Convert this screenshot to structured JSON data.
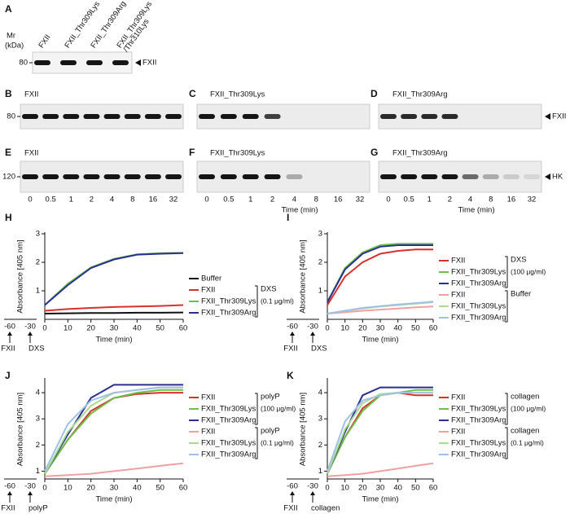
{
  "blots": [
    {
      "letter": "A",
      "mw_label": "Mr",
      "mw_unit": "(kDa)",
      "lanes": [
        [
          "FXII"
        ],
        [
          "FXII_Thr309Lys"
        ],
        [
          "FXII_Thr309Arg"
        ],
        [
          "FXII_Thr309Lys",
          "/Thr310Lys"
        ]
      ],
      "marker": "80",
      "band_label": "FXII"
    },
    {
      "letter": "B",
      "title": "FXII",
      "marker": "80"
    },
    {
      "letter": "C",
      "title": "FXII_Thr309Lys"
    },
    {
      "letter": "D",
      "title": "FXII_Thr309Arg",
      "band_label": "FXII"
    },
    {
      "letter": "E",
      "title": "FXII",
      "marker": "120"
    },
    {
      "letter": "F",
      "title": "FXII_Thr309Lys"
    },
    {
      "letter": "G",
      "title": "FXII_Thr309Arg",
      "band_label": "HK"
    }
  ],
  "time_points": [
    "0",
    "0.5",
    "1",
    "2",
    "4",
    "8",
    "16",
    "32"
  ],
  "time_label": "Time (min)",
  "chart_data": [
    {
      "type": "line",
      "letter": "H",
      "ylabel": "Absorbance [405 nm]",
      "xlabel": "Time (min)",
      "x": [
        0,
        10,
        20,
        30,
        40,
        50,
        60
      ],
      "xlim": [
        0,
        60
      ],
      "xticks": [
        0,
        10,
        20,
        30,
        40,
        50,
        60
      ],
      "ylim": [
        0,
        3
      ],
      "yticks": [
        1,
        2,
        3
      ],
      "series": [
        {
          "name": "Buffer",
          "color": "#111111",
          "values": [
            0.2,
            0.21,
            0.22,
            0.22,
            0.23,
            0.23,
            0.24
          ]
        },
        {
          "name": "FXII",
          "color": "#d9302c",
          "values": [
            0.3,
            0.36,
            0.4,
            0.43,
            0.45,
            0.47,
            0.5
          ]
        },
        {
          "name": "FXII_Thr309Lys",
          "color": "#6cc04a",
          "values": [
            0.5,
            1.25,
            1.82,
            2.12,
            2.28,
            2.32,
            2.33
          ]
        },
        {
          "name": "FXII_Thr309Arg",
          "color": "#2b2f8f",
          "values": [
            0.5,
            1.2,
            1.8,
            2.1,
            2.27,
            2.3,
            2.32
          ]
        }
      ],
      "groups": [
        {
          "label": "DXS",
          "sublabel": "(0.1 μg/ml)"
        }
      ],
      "timeline": {
        "ticks": [
          "-60",
          "-30"
        ],
        "labels": [
          "FXII",
          "DXS"
        ]
      }
    },
    {
      "type": "line",
      "letter": "I",
      "ylabel": "Absorbance [405 nm]",
      "xlabel": "Time (min)",
      "x": [
        0,
        10,
        20,
        30,
        40,
        50,
        60
      ],
      "xlim": [
        0,
        60
      ],
      "xticks": [
        0,
        10,
        20,
        30,
        40,
        50,
        60
      ],
      "ylim": [
        0,
        3
      ],
      "yticks": [
        1,
        2,
        3
      ],
      "series": [
        {
          "name": "FXII",
          "color": "#d9302c",
          "values": [
            0.5,
            1.5,
            2.0,
            2.3,
            2.4,
            2.45,
            2.45
          ]
        },
        {
          "name": "FXII_Thr309Lys",
          "color": "#6cc04a",
          "values": [
            0.6,
            1.8,
            2.35,
            2.6,
            2.65,
            2.65,
            2.65
          ]
        },
        {
          "name": "FXII_Thr309Arg",
          "color": "#2b2f8f",
          "values": [
            0.6,
            1.75,
            2.3,
            2.55,
            2.6,
            2.6,
            2.6
          ]
        },
        {
          "name": "FXII",
          "color": "#f0a0a0",
          "values": [
            0.2,
            0.25,
            0.3,
            0.34,
            0.38,
            0.42,
            0.45
          ]
        },
        {
          "name": "FXII_Thr309Lys",
          "color": "#a8dc90",
          "values": [
            0.2,
            0.3,
            0.38,
            0.45,
            0.5,
            0.55,
            0.6
          ]
        },
        {
          "name": "FXII_Thr309Arg",
          "color": "#a0c0e8",
          "values": [
            0.2,
            0.3,
            0.4,
            0.46,
            0.52,
            0.57,
            0.62
          ]
        }
      ],
      "groups": [
        {
          "label": "DXS",
          "sublabel": "(100 μg/ml)"
        },
        {
          "label": "Buffer"
        }
      ],
      "timeline": {
        "ticks": [
          "-60",
          "-30"
        ],
        "labels": [
          "FXII",
          "DXS"
        ]
      }
    },
    {
      "type": "line",
      "letter": "J",
      "ylabel": "Absorbance [405 nm]",
      "xlabel": "Time (min)",
      "x": [
        0,
        10,
        20,
        30,
        40,
        50,
        60
      ],
      "xlim": [
        0,
        60
      ],
      "xticks": [
        0,
        10,
        20,
        30,
        40,
        50,
        60
      ],
      "ylim": [
        0.7,
        4.5
      ],
      "yticks": [
        1,
        2,
        3,
        4
      ],
      "series": [
        {
          "name": "FXII",
          "color": "#d9302c",
          "values": [
            0.9,
            2.2,
            3.3,
            3.8,
            3.95,
            4.0,
            4.0
          ]
        },
        {
          "name": "FXII_Thr309Lys",
          "color": "#6cc04a",
          "values": [
            0.9,
            2.2,
            3.2,
            3.8,
            4.0,
            4.1,
            4.1
          ]
        },
        {
          "name": "FXII_Thr309Arg",
          "color": "#2b2f8f",
          "values": [
            0.9,
            2.4,
            3.8,
            4.3,
            4.3,
            4.3,
            4.3
          ]
        },
        {
          "name": "FXII",
          "color": "#f0a0a0",
          "values": [
            0.8,
            0.85,
            0.9,
            1.0,
            1.1,
            1.2,
            1.3
          ]
        },
        {
          "name": "FXII_Thr309Lys",
          "color": "#a8dc90",
          "values": [
            0.9,
            2.5,
            3.5,
            4.0,
            4.1,
            4.2,
            4.2
          ]
        },
        {
          "name": "FXII_Thr309Arg",
          "color": "#a0c0e8",
          "values": [
            1.0,
            2.8,
            3.7,
            4.0,
            4.1,
            4.2,
            4.2
          ]
        }
      ],
      "groups": [
        {
          "label": "polyP",
          "sublabel": "(100 μg/ml)"
        },
        {
          "label": "polyP",
          "sublabel": "(0.1 μg/ml)"
        }
      ],
      "timeline": {
        "ticks": [
          "-60",
          "-30"
        ],
        "labels": [
          "FXII",
          "polyP"
        ]
      }
    },
    {
      "type": "line",
      "letter": "K",
      "ylabel": "Absorbance [405 nm]",
      "xlabel": "Time (min)",
      "x": [
        0,
        10,
        20,
        30,
        40,
        50,
        60
      ],
      "xlim": [
        0,
        60
      ],
      "xticks": [
        0,
        10,
        20,
        30,
        40,
        50,
        60
      ],
      "ylim": [
        0.7,
        4.5
      ],
      "yticks": [
        1,
        2,
        3,
        4
      ],
      "series": [
        {
          "name": "FXII",
          "color": "#d9302c",
          "values": [
            0.9,
            2.3,
            3.4,
            3.9,
            4.0,
            3.9,
            3.9
          ]
        },
        {
          "name": "FXII_Thr309Lys",
          "color": "#6cc04a",
          "values": [
            0.9,
            2.3,
            3.3,
            3.9,
            4.0,
            4.1,
            4.1
          ]
        },
        {
          "name": "FXII_Thr309Arg",
          "color": "#2b2f8f",
          "values": [
            0.9,
            2.5,
            3.9,
            4.2,
            4.2,
            4.2,
            4.2
          ]
        },
        {
          "name": "FXII",
          "color": "#f0a0a0",
          "values": [
            0.8,
            0.85,
            0.9,
            1.0,
            1.1,
            1.2,
            1.3
          ]
        },
        {
          "name": "FXII_Thr309Lys",
          "color": "#a8dc90",
          "values": [
            0.9,
            2.6,
            3.6,
            3.95,
            4.0,
            4.0,
            4.0
          ]
        },
        {
          "name": "FXII_Thr309Arg",
          "color": "#a0c0e8",
          "values": [
            1.0,
            2.9,
            3.7,
            3.9,
            4.0,
            4.0,
            4.0
          ]
        }
      ],
      "groups": [
        {
          "label": "collagen",
          "sublabel": "(100 μg/ml)"
        },
        {
          "label": "collagen",
          "sublabel": "(0.1 μg/ml)"
        }
      ],
      "timeline": {
        "ticks": [
          "-60",
          "-30"
        ],
        "labels": [
          "FXII",
          "collagen"
        ]
      }
    }
  ]
}
